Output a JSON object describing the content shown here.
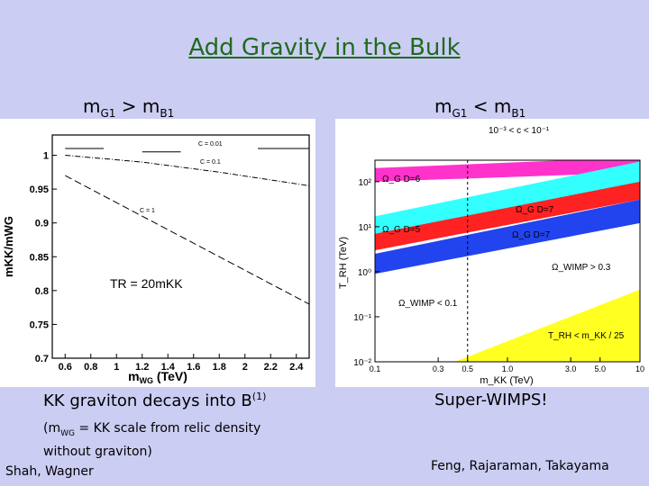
{
  "slide": {
    "title": "Add Gravity in the Bulk",
    "left_header": {
      "m": "m",
      "g": "G1",
      "op": " > m",
      "b": "B1"
    },
    "right_header": {
      "m": "m",
      "g": "G1",
      "op": " < m",
      "b": "B1"
    },
    "left_caption": {
      "text": "KK graviton decays into B",
      "sup": "(1)"
    },
    "right_caption": "Super-WIMPS!",
    "note": {
      "prefix": "(m",
      "sub": "WG",
      "rest1": " = KK scale from relic density",
      "rest2": "without graviton)"
    },
    "left_credit": "Shah, Wagner",
    "right_credit": "Feng, Rajaraman, Takayama"
  },
  "chart_data": [
    {
      "type": "line",
      "xlabel_main": "m",
      "xlabel_sub": "WG",
      "xlabel_unit": " (TeV)",
      "ylabel": "mKK/mWG",
      "xlim": [
        0.5,
        2.5
      ],
      "ylim": [
        0.7,
        1.03
      ],
      "xticks": [
        0.6,
        0.8,
        1,
        1.2,
        1.4,
        1.6,
        1.8,
        2,
        2.2,
        2.4
      ],
      "xtick_labels": [
        "0.6",
        "0.8",
        "1",
        "1.2",
        "1.4",
        "1.6",
        "1.8",
        "2",
        "2.2",
        "2.4"
      ],
      "yticks": [
        0.7,
        0.75,
        0.8,
        0.85,
        0.9,
        0.95,
        1
      ],
      "ytick_labels": [
        "0.7",
        "0.75",
        "0.8",
        "0.85",
        "0.9",
        "0.95",
        "1"
      ],
      "series": [
        {
          "name": "C = 0.01",
          "x": [
            0.6,
            0.9,
            1.0,
            1.2,
            1.2,
            1.5,
            1.6,
            2.0,
            2.1,
            2.5
          ],
          "y": [
            1.01,
            1.01,
            null,
            null,
            1.005,
            1.005,
            null,
            null,
            1.01,
            1.01
          ]
        },
        {
          "name": "C = 0.1",
          "x": [
            0.6,
            1.2,
            1.8,
            2.5
          ],
          "y": [
            1.0,
            0.99,
            0.975,
            0.955
          ]
        },
        {
          "name": "C = 1",
          "x": [
            0.6,
            1.0,
            1.5,
            2.0,
            2.5
          ],
          "y": [
            0.97,
            0.93,
            0.88,
            0.83,
            0.78
          ]
        }
      ],
      "annotations": [
        "C = 0.01",
        "C = 0.1",
        "C = 1",
        "TR = 20mKK"
      ]
    },
    {
      "type": "area",
      "title": "10⁻³ < c < 10⁻¹",
      "xlabel": "m_KK (TeV)",
      "ylabel": "T_RH (TeV)",
      "xscale": "log",
      "yscale": "log",
      "xlim": [
        0.1,
        10
      ],
      "ylim": [
        0.01,
        300
      ],
      "xtick_labels": [
        "0.1",
        "0.3",
        "0.5",
        "1.0",
        "3.0",
        "5.0",
        "10"
      ],
      "ytick_labels": [
        "10⁻²",
        "10⁻¹",
        "10⁰",
        "10¹",
        "10²"
      ],
      "bands": [
        {
          "label": "Ω_G D=6",
          "color": "#ff33cc",
          "lower": [
            [
              0.1,
              100
            ],
            [
              10,
              160
            ]
          ],
          "upper": [
            [
              0.1,
              200
            ],
            [
              10,
              350
            ]
          ]
        },
        {
          "label": "Ω_G D=7",
          "color": "#33ffff",
          "lower": [
            [
              0.1,
              7
            ],
            [
              10,
              95
            ]
          ],
          "upper": [
            [
              0.1,
              17
            ],
            [
              10,
              280
            ]
          ]
        },
        {
          "label": "Ω_G D=5",
          "color": "#ff2222",
          "lower": [
            [
              0.1,
              3
            ],
            [
              10,
              40
            ]
          ],
          "upper": [
            [
              0.1,
              7
            ],
            [
              10,
              100
            ]
          ]
        },
        {
          "label": "Ω_G D=7",
          "color": "#2244ee",
          "lower": [
            [
              0.1,
              0.9
            ],
            [
              10,
              12
            ]
          ],
          "upper": [
            [
              0.1,
              2.5
            ],
            [
              10,
              40
            ]
          ]
        },
        {
          "label": "T_RH < m_KK / 25",
          "color": "#ffff22",
          "lower": [
            [
              0.4,
              0.01
            ],
            [
              10,
              0.01
            ]
          ],
          "upper": [
            [
              0.4,
              0.01
            ],
            [
              10,
              0.4
            ]
          ]
        }
      ],
      "annotations": [
        "Ω_G D=6",
        "Ω_G D=7",
        "Ω_G D=5",
        "Ω_G D=7",
        "Ω_WIMP > 0.3",
        "Ω_WIMP < 0.1",
        "T_RH < m_KK / 25"
      ]
    }
  ]
}
